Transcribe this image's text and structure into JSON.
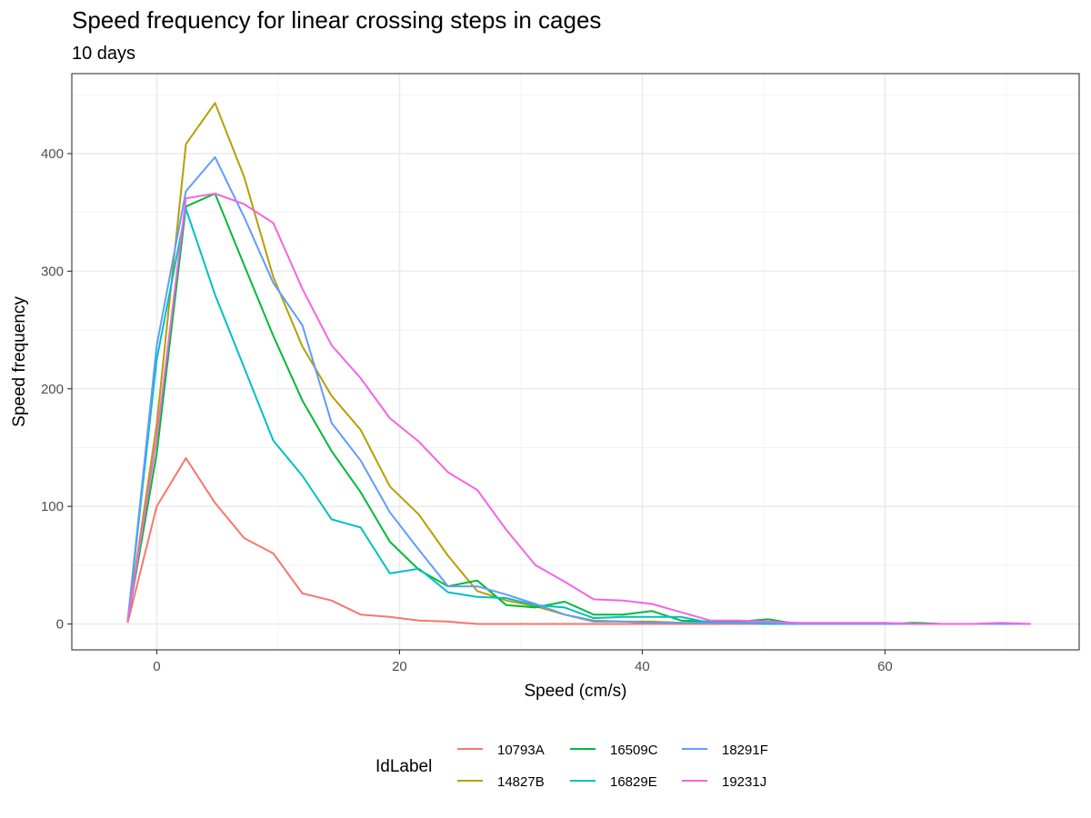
{
  "chart_data": {
    "type": "line",
    "title": "Speed frequency for linear crossing steps in cages",
    "subtitle": "10  days",
    "xlabel": "Speed (cm/s)",
    "ylabel": "Speed frequency",
    "xlim": [
      -7,
      76
    ],
    "ylim": [
      -22,
      468
    ],
    "x_ticks": [
      0,
      20,
      40,
      60
    ],
    "x_tick_labels": [
      "0",
      "20",
      "40",
      "60"
    ],
    "y_ticks": [
      0,
      100,
      200,
      300,
      400
    ],
    "y_tick_labels": [
      "0",
      "100",
      "200",
      "300",
      "400"
    ],
    "grid": true,
    "legend": {
      "title": "IdLabel",
      "placement": "bottom"
    },
    "x": [
      -2.4,
      0,
      2.4,
      4.8,
      7.2,
      9.6,
      12,
      14.4,
      16.8,
      19.2,
      21.6,
      24,
      26.4,
      28.8,
      31.2,
      33.6,
      36,
      38.4,
      40.8,
      43.2,
      45.6,
      48,
      50.4,
      52.8,
      55.2,
      57.6,
      60,
      62.4,
      64.8,
      67.2,
      69.6,
      72
    ],
    "series": [
      {
        "name": "10793A",
        "color": "#F8766D",
        "values": [
          1,
          100,
          141,
          103,
          73,
          60,
          26,
          20,
          8,
          6,
          3,
          2,
          0,
          0,
          0,
          0,
          0,
          0,
          0,
          0,
          0,
          0,
          0,
          0,
          0,
          0,
          0,
          0,
          0,
          0,
          0,
          0
        ]
      },
      {
        "name": "14827B",
        "color": "#B79F00",
        "values": [
          2,
          170,
          408,
          443,
          380,
          295,
          236,
          194,
          165,
          117,
          93,
          58,
          28,
          20,
          15,
          8,
          3,
          2,
          2,
          1,
          1,
          2,
          1,
          0,
          0,
          0,
          0,
          0,
          0,
          0,
          0,
          0
        ]
      },
      {
        "name": "16509C",
        "color": "#00BA38",
        "values": [
          2,
          145,
          355,
          366,
          305,
          245,
          190,
          147,
          112,
          70,
          46,
          32,
          37,
          16,
          14,
          19,
          8,
          8,
          11,
          3,
          2,
          2,
          4,
          0,
          0,
          0,
          0,
          1,
          0,
          0,
          0,
          0
        ]
      },
      {
        "name": "16829E",
        "color": "#00BFC4",
        "values": [
          2,
          225,
          353,
          280,
          218,
          156,
          126,
          89,
          82,
          43,
          47,
          27,
          23,
          22,
          16,
          14,
          5,
          6,
          6,
          6,
          1,
          1,
          0,
          0,
          0,
          0,
          0,
          0,
          0,
          0,
          0,
          0
        ]
      },
      {
        "name": "18291F",
        "color": "#619CFF",
        "values": [
          2,
          237,
          368,
          397,
          346,
          290,
          254,
          171,
          139,
          95,
          63,
          32,
          32,
          25,
          17,
          8,
          2,
          2,
          1,
          1,
          1,
          1,
          1,
          0,
          0,
          0,
          0,
          0,
          0,
          0,
          0,
          0
        ]
      },
      {
        "name": "19231J",
        "color": "#F564E3",
        "values": [
          2,
          158,
          362,
          366,
          357,
          341,
          285,
          237,
          209,
          175,
          155,
          129,
          114,
          80,
          50,
          36,
          21,
          20,
          17,
          10,
          3,
          3,
          2,
          1,
          1,
          1,
          1,
          0,
          0,
          0,
          1,
          0
        ]
      }
    ]
  }
}
